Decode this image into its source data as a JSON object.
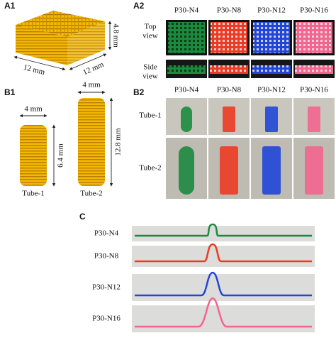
{
  "a1": {
    "label": "A1",
    "dims": [
      "4.8 mm",
      "12 mm",
      "12 mm"
    ]
  },
  "a2": {
    "label": "A2",
    "columns": [
      "P30-N4",
      "P30-N8",
      "P30-N12",
      "P30-N16"
    ],
    "rows": [
      [
        "Top",
        "view"
      ],
      [
        "Side",
        "view"
      ]
    ]
  },
  "b1": {
    "label": "B1",
    "tubes": [
      {
        "name": "Tube-1",
        "diameter": "4 mm",
        "height": "6.4 mm"
      },
      {
        "name": "Tube-2",
        "diameter": "4 mm",
        "height": "12.8 mm"
      }
    ]
  },
  "b2": {
    "label": "B2",
    "columns": [
      "P30-N4",
      "P30-N8",
      "P30-N12",
      "P30-N16"
    ],
    "rows": [
      "Tube-1",
      "Tube-2"
    ]
  },
  "c": {
    "label": "C",
    "rows": [
      "P30-N4",
      "P30-N8",
      "P30-N12",
      "P30-N16"
    ]
  }
}
